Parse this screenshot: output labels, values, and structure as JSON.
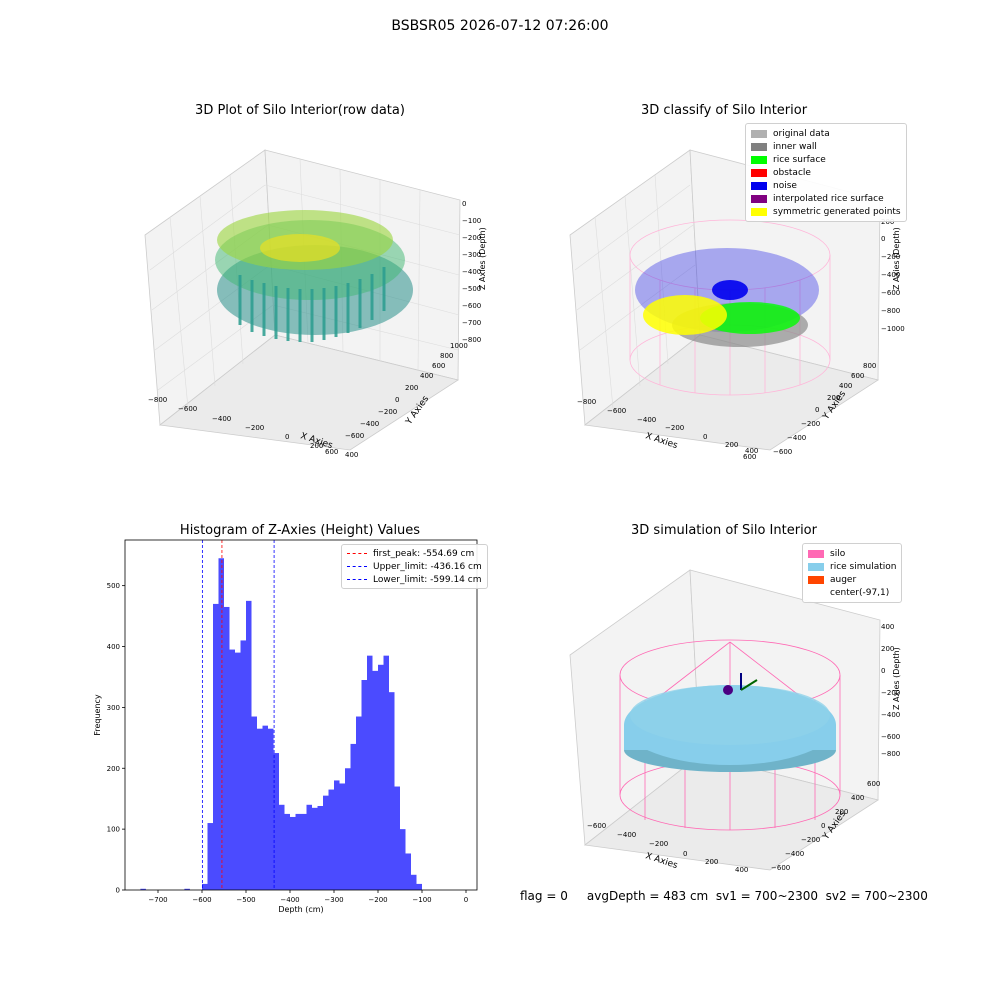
{
  "page": {
    "title": "BSBSR05 2026-07-12 07:26:00"
  },
  "panel_raw": {
    "title": "3D Plot of Silo Interior(row data)",
    "xlabel": "X Axies",
    "ylabel": "Y Axies",
    "zlabel": "Z Axies (Depth)",
    "xticks": [
      "−800",
      "−600",
      "−400",
      "−200",
      "0",
      "200",
      "400",
      "600"
    ],
    "yticks": [
      "−600",
      "−400",
      "−200",
      "0",
      "200",
      "400",
      "600",
      "800",
      "1000"
    ],
    "zticks": [
      "0",
      "−100",
      "−200",
      "−300",
      "−400",
      "−500",
      "−600",
      "−700",
      "−800"
    ]
  },
  "panel_classify": {
    "title": "3D classify of Silo Interior",
    "xlabel": "X Axies",
    "ylabel": "Y Axies",
    "zlabel": "Z Axies (Depth)",
    "xticks": [
      "−800",
      "−600",
      "−400",
      "−200",
      "0",
      "200",
      "400",
      "600"
    ],
    "yticks": [
      "−600",
      "−400",
      "−200",
      "0",
      "200",
      "400",
      "600",
      "800"
    ],
    "zticks": [
      "200",
      "0",
      "−200",
      "−400",
      "−600",
      "−800",
      "−1000"
    ],
    "legend": [
      {
        "label": "original data",
        "color": "#b0b0b0"
      },
      {
        "label": "inner wall",
        "color": "#808080"
      },
      {
        "label": "rice surface",
        "color": "#00ff00"
      },
      {
        "label": "obstacle",
        "color": "#ff0000"
      },
      {
        "label": "noise",
        "color": "#0000ee"
      },
      {
        "label": "interpolated rice surface",
        "color": "#800080"
      },
      {
        "label": "symmetric generated points",
        "color": "#ffff00"
      }
    ]
  },
  "panel_sim": {
    "title": "3D simulation of Silo Interior",
    "xlabel": "X Axies",
    "ylabel": "Y Axies",
    "zlabel": "Z Axies (Depth)",
    "xticks": [
      "−600",
      "−400",
      "−200",
      "0",
      "200",
      "400"
    ],
    "yticks": [
      "−600",
      "−400",
      "−200",
      "0",
      "200",
      "400",
      "600"
    ],
    "zticks": [
      "400",
      "200",
      "0",
      "−200",
      "−400",
      "−600",
      "−800"
    ],
    "legend": [
      {
        "label": "silo",
        "color": "#ff69b4"
      },
      {
        "label": "rice simulation",
        "color": "#87ceeb"
      },
      {
        "label": "auger",
        "color": "#ff4500"
      },
      {
        "label": "center(-97,1)",
        "color": "#ffffff"
      }
    ]
  },
  "status": {
    "text": "flag = 0     avgDepth = 483 cm  sv1 = 700~2300  sv2 = 700~2300"
  },
  "chart_data": {
    "type": "bar",
    "title": "Histogram of Z-Axies (Height) Values",
    "xlabel": "Depth (cm)",
    "ylabel": "Frequency",
    "xlim": [
      -775,
      25
    ],
    "ylim": [
      0,
      575
    ],
    "xticks": [
      -700,
      -600,
      -500,
      -400,
      -300,
      -200,
      -100,
      0
    ],
    "xtick_labels": [
      "−700",
      "−600",
      "−500",
      "−400",
      "−300",
      "−200",
      "−100",
      "0"
    ],
    "yticks": [
      0,
      100,
      200,
      300,
      400,
      500
    ],
    "yticks_labels": [
      "0",
      "100",
      "200",
      "300",
      "400",
      "500"
    ],
    "bin_width": 12.5,
    "bar_color": "#4b4bff",
    "bins": [
      {
        "x0": -740,
        "h": 2
      },
      {
        "x0": -640,
        "h": 2
      },
      {
        "x0": -600,
        "h": 10
      },
      {
        "x0": -587.5,
        "h": 110
      },
      {
        "x0": -575,
        "h": 470
      },
      {
        "x0": -562.5,
        "h": 545
      },
      {
        "x0": -550,
        "h": 465
      },
      {
        "x0": -537.5,
        "h": 395
      },
      {
        "x0": -525,
        "h": 390
      },
      {
        "x0": -512.5,
        "h": 410
      },
      {
        "x0": -500,
        "h": 475
      },
      {
        "x0": -487.5,
        "h": 285
      },
      {
        "x0": -475,
        "h": 265
      },
      {
        "x0": -462.5,
        "h": 270
      },
      {
        "x0": -450,
        "h": 265
      },
      {
        "x0": -437.5,
        "h": 225
      },
      {
        "x0": -425,
        "h": 140
      },
      {
        "x0": -412.5,
        "h": 125
      },
      {
        "x0": -400,
        "h": 120
      },
      {
        "x0": -387.5,
        "h": 125
      },
      {
        "x0": -375,
        "h": 125
      },
      {
        "x0": -362.5,
        "h": 140
      },
      {
        "x0": -350,
        "h": 135
      },
      {
        "x0": -337.5,
        "h": 138
      },
      {
        "x0": -325,
        "h": 155
      },
      {
        "x0": -312.5,
        "h": 165
      },
      {
        "x0": -300,
        "h": 180
      },
      {
        "x0": -287.5,
        "h": 175
      },
      {
        "x0": -275,
        "h": 200
      },
      {
        "x0": -262.5,
        "h": 240
      },
      {
        "x0": -250,
        "h": 285
      },
      {
        "x0": -237.5,
        "h": 345
      },
      {
        "x0": -225,
        "h": 385
      },
      {
        "x0": -212.5,
        "h": 360
      },
      {
        "x0": -200,
        "h": 370
      },
      {
        "x0": -187.5,
        "h": 385
      },
      {
        "x0": -175,
        "h": 325
      },
      {
        "x0": -162.5,
        "h": 170
      },
      {
        "x0": -150,
        "h": 100
      },
      {
        "x0": -137.5,
        "h": 60
      },
      {
        "x0": -125,
        "h": 25
      },
      {
        "x0": -112.5,
        "h": 10
      }
    ],
    "lines": [
      {
        "label": "first_peak: -554.69 cm",
        "x": -554.69,
        "color": "#ff0000"
      },
      {
        "label": "Upper_limit: -436.16 cm",
        "x": -436.16,
        "color": "#0000ff"
      },
      {
        "label": "Lower_limit: -599.14 cm",
        "x": -599.14,
        "color": "#0000ff"
      }
    ],
    "legend_position": "upper-right"
  }
}
